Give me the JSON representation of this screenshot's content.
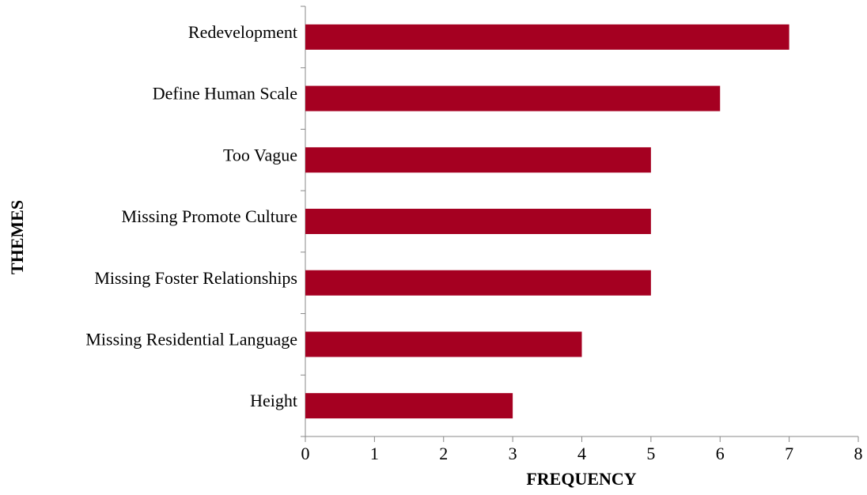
{
  "chart_data": {
    "type": "barh",
    "categories": [
      "Redevelopment",
      "Define Human Scale",
      "Too Vague",
      "Missing Promote Culture",
      "Missing Foster Relationships",
      "Missing Residential Language",
      "Height"
    ],
    "values": [
      7,
      6,
      5,
      5,
      5,
      4,
      3
    ],
    "color": "#a50021",
    "xlim": [
      0,
      8
    ],
    "xticks": [
      0,
      1,
      2,
      3,
      4,
      5,
      6,
      7,
      8
    ],
    "x_label": "FREQUENCY",
    "y_label": "THEMES",
    "grid": false
  }
}
